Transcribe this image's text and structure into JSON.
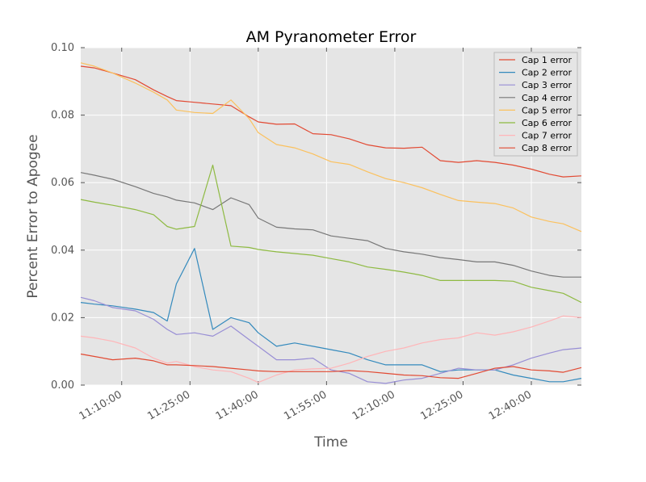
{
  "chart_data": {
    "type": "line",
    "title": "AM Pyranometer Error",
    "xlabel": "Time",
    "ylabel": "Percent Error to Apogee",
    "x_tick_labels": [
      "11:10:00",
      "11:25:00",
      "11:40:00",
      "11:55:00",
      "12:10:00",
      "12:25:00",
      "12:40:00"
    ],
    "x_tick_minutes": [
      670,
      685,
      700,
      715,
      730,
      745,
      760
    ],
    "xlim_minutes": [
      661,
      771
    ],
    "ylim": [
      0,
      0.1
    ],
    "y_ticks": [
      0.0,
      0.02,
      0.04,
      0.06,
      0.08,
      0.1
    ],
    "y_tick_labels": [
      "0.00",
      "0.02",
      "0.04",
      "0.06",
      "0.08",
      "0.10"
    ],
    "grid": true,
    "legend_position": "top-right",
    "x_minutes": [
      661,
      664,
      668,
      673,
      677,
      680,
      682,
      686,
      690,
      694,
      698,
      700,
      704,
      708,
      712,
      716,
      720,
      724,
      728,
      732,
      736,
      740,
      744,
      748,
      752,
      756,
      760,
      764,
      767,
      771
    ],
    "series": [
      {
        "name": "Cap 1 error",
        "color": "#e24a33",
        "values": [
          0.0945,
          0.094,
          0.0925,
          0.0905,
          0.0875,
          0.0855,
          0.0843,
          0.0838,
          0.0833,
          0.0828,
          0.0795,
          0.078,
          0.0773,
          0.0774,
          0.0745,
          0.0742,
          0.073,
          0.0712,
          0.0703,
          0.0702,
          0.0705,
          0.0665,
          0.066,
          0.0665,
          0.066,
          0.0652,
          0.064,
          0.0625,
          0.0617,
          0.062
        ]
      },
      {
        "name": "Cap 2 error",
        "color": "#348abd",
        "values": [
          0.0245,
          0.024,
          0.0235,
          0.0225,
          0.0215,
          0.019,
          0.03,
          0.0405,
          0.0165,
          0.02,
          0.0185,
          0.0155,
          0.0115,
          0.0125,
          0.0115,
          0.0105,
          0.0095,
          0.0075,
          0.006,
          0.006,
          0.006,
          0.004,
          0.0045,
          0.0045,
          0.0045,
          0.003,
          0.002,
          0.001,
          0.001,
          0.002
        ]
      },
      {
        "name": "Cap 3 error",
        "color": "#988ed5",
        "values": [
          0.026,
          0.025,
          0.023,
          0.022,
          0.0195,
          0.0165,
          0.015,
          0.0155,
          0.0145,
          0.0175,
          0.0135,
          0.0115,
          0.0075,
          0.0075,
          0.008,
          0.0045,
          0.0035,
          0.001,
          0.0005,
          0.0015,
          0.002,
          0.0035,
          0.005,
          0.0045,
          0.0045,
          0.006,
          0.008,
          0.0095,
          0.0105,
          0.011
        ]
      },
      {
        "name": "Cap 4 error",
        "color": "#777777",
        "values": [
          0.063,
          0.0622,
          0.061,
          0.0588,
          0.0568,
          0.0558,
          0.0548,
          0.054,
          0.052,
          0.0555,
          0.0535,
          0.0495,
          0.0468,
          0.0463,
          0.046,
          0.0442,
          0.0435,
          0.0428,
          0.0405,
          0.0395,
          0.0388,
          0.0378,
          0.0372,
          0.0365,
          0.0365,
          0.0355,
          0.0338,
          0.0325,
          0.032,
          0.032
        ]
      },
      {
        "name": "Cap 5 error",
        "color": "#fbc15e",
        "values": [
          0.0955,
          0.0945,
          0.0925,
          0.0895,
          0.0868,
          0.0845,
          0.0815,
          0.0808,
          0.0805,
          0.0845,
          0.079,
          0.0748,
          0.0713,
          0.0703,
          0.0685,
          0.0662,
          0.0654,
          0.0632,
          0.0612,
          0.06,
          0.0585,
          0.0565,
          0.0547,
          0.0542,
          0.0538,
          0.0525,
          0.0498,
          0.0485,
          0.0478,
          0.0455
        ]
      },
      {
        "name": "Cap 6 error",
        "color": "#8eba42",
        "values": [
          0.055,
          0.0542,
          0.0533,
          0.052,
          0.0505,
          0.047,
          0.0462,
          0.047,
          0.0652,
          0.0412,
          0.0408,
          0.0402,
          0.0395,
          0.039,
          0.0385,
          0.0375,
          0.0365,
          0.035,
          0.0343,
          0.0335,
          0.0325,
          0.031,
          0.031,
          0.031,
          0.031,
          0.0308,
          0.029,
          0.028,
          0.0272,
          0.0245
        ]
      },
      {
        "name": "Cap 7 error",
        "color": "#ffb5b8",
        "values": [
          0.0145,
          0.014,
          0.013,
          0.011,
          0.008,
          0.0065,
          0.007,
          0.0055,
          0.0045,
          0.004,
          0.002,
          0.0008,
          0.003,
          0.0045,
          0.0048,
          0.005,
          0.0065,
          0.0085,
          0.01,
          0.011,
          0.0125,
          0.0135,
          0.014,
          0.0155,
          0.0148,
          0.0158,
          0.0172,
          0.019,
          0.0205,
          0.02
        ]
      },
      {
        "name": "Cap 8 error",
        "color": "#e24a33",
        "values": [
          0.0092,
          0.0085,
          0.0075,
          0.008,
          0.0072,
          0.006,
          0.006,
          0.0058,
          0.0055,
          0.005,
          0.0045,
          0.0042,
          0.004,
          0.004,
          0.004,
          0.004,
          0.0043,
          0.004,
          0.0035,
          0.003,
          0.0028,
          0.0022,
          0.002,
          0.0035,
          0.005,
          0.0055,
          0.0045,
          0.0042,
          0.0038,
          0.0052
        ]
      }
    ]
  }
}
